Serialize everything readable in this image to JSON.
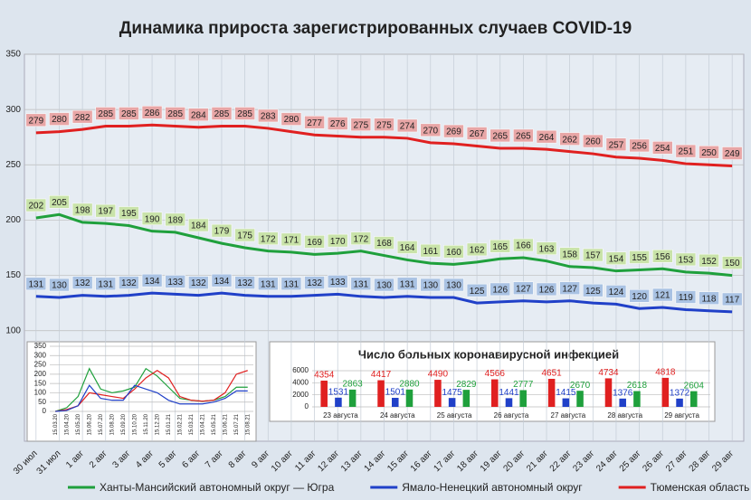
{
  "chart_data": [
    {
      "type": "line",
      "title": "Динамика прироста зарегистрированных случаев COVID-19",
      "categories": [
        "30 июл",
        "31 июл",
        "1 авг",
        "2 авг",
        "3 авг",
        "4 авг",
        "5 авг",
        "6 авг",
        "7 авг",
        "8 авг",
        "9 авг",
        "10 авг",
        "11 авг",
        "12 авг",
        "13 авг",
        "14 авг",
        "15 авг",
        "16 авг",
        "17 авг",
        "18 авг",
        "19 авг",
        "20 авг",
        "21 авг",
        "22 авг",
        "23 авг",
        "24 авг",
        "25 авг",
        "26 авг",
        "27 авг",
        "28 авг",
        "29 авг"
      ],
      "series": [
        {
          "name": "Ханты-Мансийский автономный округ — Югра",
          "color": "#1fa03c",
          "label_color": "#c9e3a9",
          "values": [
            202,
            205,
            198,
            197,
            195,
            190,
            189,
            184,
            179,
            175,
            172,
            171,
            169,
            170,
            172,
            168,
            164,
            161,
            160,
            162,
            165,
            166,
            163,
            158,
            157,
            154,
            155,
            156,
            153,
            152,
            150
          ]
        },
        {
          "name": "Ямало-Ненецкий автономный округ",
          "color": "#2040c8",
          "label_color": "#a9c2e3",
          "values": [
            131,
            130,
            132,
            131,
            132,
            134,
            133,
            132,
            134,
            132,
            131,
            131,
            132,
            133,
            131,
            130,
            131,
            130,
            130,
            125,
            126,
            127,
            126,
            127,
            125,
            124,
            120,
            121,
            119,
            118,
            117
          ]
        },
        {
          "name": "Тюменская область",
          "color": "#e02020",
          "label_color": "#e8a6a6",
          "values": [
            279,
            280,
            282,
            285,
            285,
            286,
            285,
            284,
            285,
            285,
            283,
            280,
            277,
            276,
            275,
            275,
            274,
            270,
            269,
            267,
            265,
            265,
            264,
            262,
            260,
            257,
            256,
            254,
            251,
            250,
            249
          ]
        }
      ],
      "ylim": [
        0,
        350
      ],
      "yticks": [
        100,
        150,
        200,
        250,
        300,
        350
      ],
      "grid": true
    },
    {
      "type": "line",
      "categories": [
        "15.03.20",
        "15.04.20",
        "15.05.20",
        "15.06.20",
        "15.07.20",
        "15.08.20",
        "15.09.20",
        "15.10.20",
        "15.11.20",
        "15.12.20",
        "15.01.21",
        "15.02.21",
        "15.03.21",
        "15.04.21",
        "15.05.21",
        "15.06.21",
        "15.07.21",
        "15.08.21"
      ],
      "series": [
        {
          "color": "#1fa03c",
          "values": [
            0,
            20,
            80,
            230,
            120,
            100,
            110,
            130,
            230,
            190,
            130,
            70,
            60,
            55,
            60,
            80,
            130,
            130
          ]
        },
        {
          "color": "#e02020",
          "values": [
            0,
            10,
            30,
            100,
            90,
            80,
            70,
            120,
            180,
            220,
            180,
            80,
            60,
            55,
            60,
            100,
            200,
            220
          ]
        },
        {
          "color": "#2040c8",
          "values": [
            0,
            5,
            30,
            140,
            70,
            60,
            60,
            140,
            120,
            100,
            60,
            40,
            40,
            40,
            50,
            70,
            110,
            110
          ]
        }
      ],
      "ylim": [
        0,
        350
      ],
      "yticks": [
        0,
        50,
        100,
        150,
        200,
        250,
        300,
        350
      ],
      "grid": true
    },
    {
      "type": "bar",
      "title": "Число больных коронавирусной  инфекцией",
      "categories": [
        "23 августа",
        "24 августа",
        "25 августа",
        "26 августа",
        "27 августа",
        "28 августа",
        "29 августа"
      ],
      "series": [
        {
          "color": "#e02020",
          "values": [
            4354,
            4417,
            4490,
            4566,
            4651,
            4734,
            4818
          ]
        },
        {
          "color": "#2040c8",
          "values": [
            1531,
            1501,
            1475,
            1441,
            1415,
            1376,
            1372
          ]
        },
        {
          "color": "#1fa03c",
          "values": [
            2863,
            2880,
            2829,
            2777,
            2670,
            2618,
            2604
          ]
        }
      ],
      "ylim": [
        0,
        6000
      ],
      "yticks": [
        0,
        2000,
        4000,
        6000
      ],
      "grid": true
    }
  ]
}
